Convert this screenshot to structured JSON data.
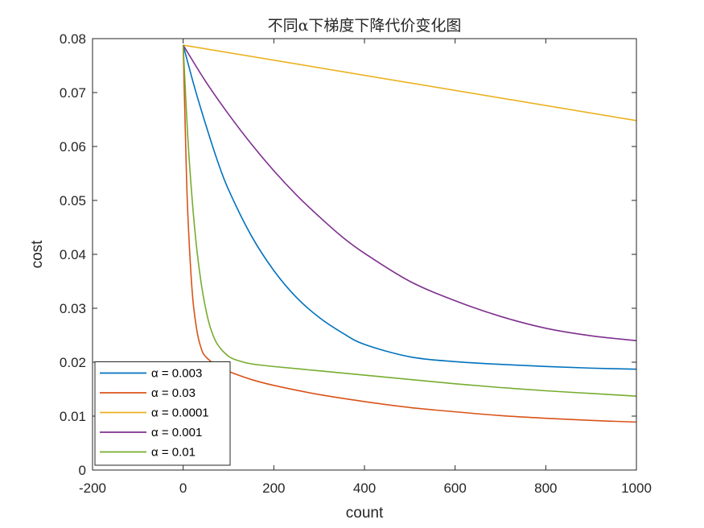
{
  "chart_data": {
    "type": "line",
    "title": "不同α下梯度下降代价变化图",
    "xlabel": "count",
    "ylabel": "cost",
    "xlim": [
      -200,
      1000
    ],
    "ylim": [
      0,
      0.08
    ],
    "xticks": [
      -200,
      0,
      200,
      400,
      600,
      800,
      1000
    ],
    "xtick_labels": [
      "-200",
      "0",
      "200",
      "400",
      "600",
      "800",
      "1000"
    ],
    "yticks": [
      0,
      0.01,
      0.02,
      0.03,
      0.04,
      0.05,
      0.06,
      0.07,
      0.08
    ],
    "ytick_labels": [
      "0",
      "0.01",
      "0.02",
      "0.03",
      "0.04",
      "0.05",
      "0.06",
      "0.07",
      "0.08"
    ],
    "grid": false,
    "legend_position": "bottom-left",
    "series": [
      {
        "name": "α = 0.003",
        "color": "#0072BD",
        "x": [
          0,
          25,
          50,
          75,
          100,
          150,
          200,
          250,
          300,
          350,
          400,
          500,
          600,
          700,
          800,
          900,
          1000
        ],
        "y": [
          0.0788,
          0.071,
          0.064,
          0.0575,
          0.052,
          0.0435,
          0.037,
          0.032,
          0.0283,
          0.0255,
          0.0233,
          0.021,
          0.0201,
          0.0196,
          0.0192,
          0.0189,
          0.0187
        ]
      },
      {
        "name": "α = 0.03",
        "color": "#D95319",
        "x": [
          0,
          5,
          10,
          20,
          30,
          40,
          50,
          75,
          100,
          150,
          200,
          300,
          400,
          500,
          600,
          700,
          800,
          900,
          1000
        ],
        "y": [
          0.0788,
          0.062,
          0.048,
          0.033,
          0.026,
          0.0225,
          0.021,
          0.0193,
          0.0183,
          0.0168,
          0.0157,
          0.014,
          0.0127,
          0.0116,
          0.0108,
          0.0101,
          0.0096,
          0.0092,
          0.0089
        ]
      },
      {
        "name": "α = 0.0001",
        "color": "#EDB120",
        "x": [
          0,
          1000
        ],
        "y": [
          0.0788,
          0.0648
        ]
      },
      {
        "name": "α = 0.001",
        "color": "#7E2F8E",
        "x": [
          0,
          50,
          100,
          150,
          200,
          250,
          300,
          350,
          400,
          500,
          600,
          700,
          800,
          900,
          1000
        ],
        "y": [
          0.0788,
          0.072,
          0.066,
          0.0605,
          0.0555,
          0.051,
          0.047,
          0.0433,
          0.0402,
          0.035,
          0.0314,
          0.0285,
          0.0263,
          0.0249,
          0.024
        ]
      },
      {
        "name": "α = 0.01",
        "color": "#77AC30",
        "x": [
          0,
          10,
          20,
          30,
          40,
          50,
          60,
          75,
          100,
          125,
          150,
          200,
          300,
          400,
          500,
          600,
          700,
          800,
          900,
          1000
        ],
        "y": [
          0.0788,
          0.062,
          0.05,
          0.041,
          0.0345,
          0.0298,
          0.0264,
          0.0234,
          0.0211,
          0.0202,
          0.0197,
          0.0192,
          0.0184,
          0.0176,
          0.0168,
          0.016,
          0.0153,
          0.0147,
          0.0142,
          0.0137
        ]
      }
    ]
  }
}
